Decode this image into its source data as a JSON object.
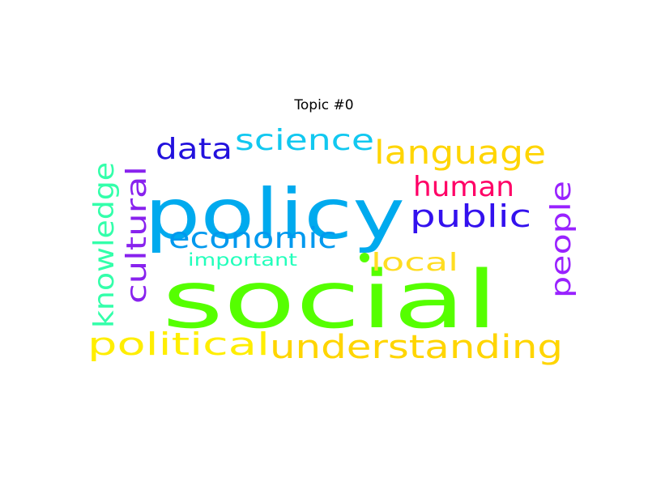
{
  "chart_data": {
    "type": "wordcloud",
    "title": "Topic #0",
    "words": [
      {
        "text": "social",
        "color": "#55ff00"
      },
      {
        "text": "policy",
        "color": "#00aaee"
      },
      {
        "text": "language",
        "color": "#ffd500"
      },
      {
        "text": "science",
        "color": "#11c8f0"
      },
      {
        "text": "data",
        "color": "#2211dd"
      },
      {
        "text": "human",
        "color": "#ff0066"
      },
      {
        "text": "public",
        "color": "#3311ee"
      },
      {
        "text": "economic",
        "color": "#0099ee"
      },
      {
        "text": "knowledge",
        "color": "#33ffaa"
      },
      {
        "text": "cultural",
        "color": "#8822ee"
      },
      {
        "text": "people",
        "color": "#9922ff"
      },
      {
        "text": "local",
        "color": "#ffdd22"
      },
      {
        "text": "important",
        "color": "#22ffbb"
      },
      {
        "text": "political",
        "color": "#ffee00"
      },
      {
        "text": "understanding",
        "color": "#ffd500"
      }
    ]
  }
}
